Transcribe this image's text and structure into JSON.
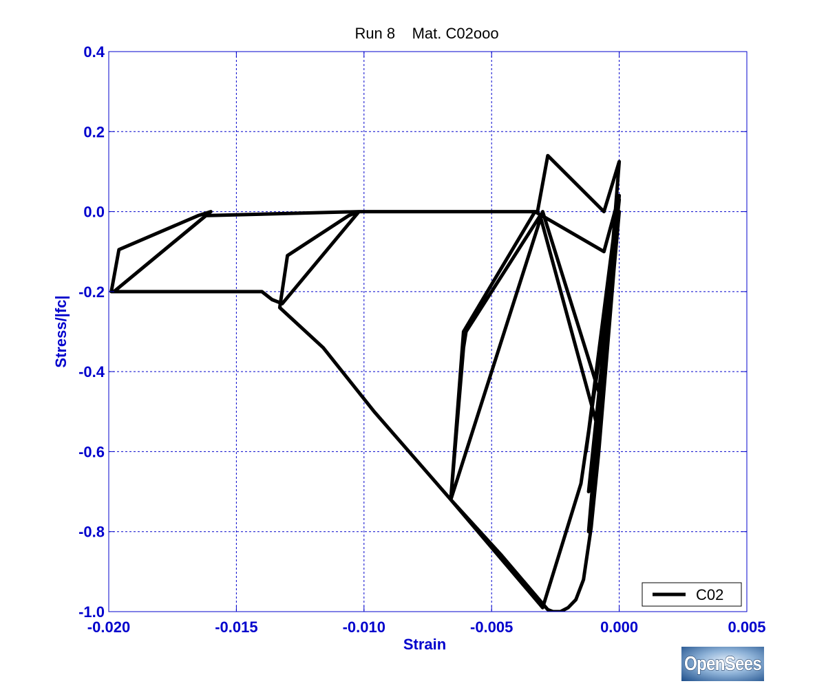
{
  "chart_data": {
    "type": "line",
    "title": "Run 8    Mat. C02ooo",
    "xlabel": "Strain",
    "ylabel": "Stress/|fc|",
    "xlim": [
      -0.02,
      0.005
    ],
    "ylim": [
      -1.0,
      0.4
    ],
    "xticks": [
      -0.02,
      -0.015,
      -0.01,
      -0.005,
      0.0,
      0.005
    ],
    "xtick_labels": [
      "-0.020",
      "-0.015",
      "-0.010",
      "-0.005",
      "0.000",
      "0.005"
    ],
    "yticks": [
      -1.0,
      -0.8,
      -0.6,
      -0.4,
      -0.2,
      0.0,
      0.2,
      0.4
    ],
    "ytick_labels": [
      "-1.0",
      "-0.8",
      "-0.6",
      "-0.4",
      "-0.2",
      "0.0",
      "0.2",
      "0.4"
    ],
    "grid": true,
    "legend_position": "bottom-right",
    "series": [
      {
        "name": "C02",
        "color": "#000000",
        "x": [
          0.0,
          -0.0002,
          -0.0005,
          -0.0008,
          -0.0011,
          -0.0014,
          -0.0017,
          -0.002,
          -0.0023,
          -0.0026,
          -0.0028,
          -0.0046,
          -0.0066,
          -0.0096,
          -0.0116,
          -0.0133,
          -0.013,
          -0.0106,
          -0.0102,
          -0.0132,
          -0.0136,
          -0.014,
          -0.0199,
          -0.0196,
          -0.0165,
          -0.016,
          -0.0198,
          -0.0162,
          -0.0102,
          -0.0052,
          -0.0032,
          -0.0028,
          -0.0006,
          0.0,
          -0.0004,
          -0.0015,
          -0.003,
          -0.0066,
          -0.0061,
          -0.006,
          -0.0031,
          -0.0008,
          0.0,
          -0.0008,
          -0.003,
          -0.0066,
          -0.0061,
          -0.0033,
          -0.0006,
          0.0,
          -0.0012,
          -0.0004,
          0.0,
          -0.0012,
          -0.0003,
          0.0,
          -0.0013,
          -0.0002
        ],
        "y": [
          0.0,
          -0.14,
          -0.37,
          -0.6,
          -0.79,
          -0.92,
          -0.97,
          -0.99,
          -1.0,
          -1.0,
          -0.995,
          -0.86,
          -0.72,
          -0.5,
          -0.34,
          -0.24,
          -0.11,
          -0.01,
          0.0,
          -0.23,
          -0.22,
          -0.2,
          -0.2,
          -0.095,
          -0.01,
          0.0,
          -0.2,
          -0.01,
          0.0,
          0.0,
          0.0,
          0.14,
          0.0,
          0.125,
          -0.2,
          -0.68,
          -0.99,
          -0.72,
          -0.34,
          -0.3,
          -0.01,
          -0.55,
          0.0,
          -0.45,
          0.0,
          -0.72,
          -0.3,
          0.0,
          -0.1,
          0.04,
          -0.8,
          -0.2,
          0.03,
          -0.7,
          -0.15,
          0.0,
          -0.6,
          -0.05
        ]
      }
    ]
  },
  "logo": {
    "text": "OpenSees"
  }
}
